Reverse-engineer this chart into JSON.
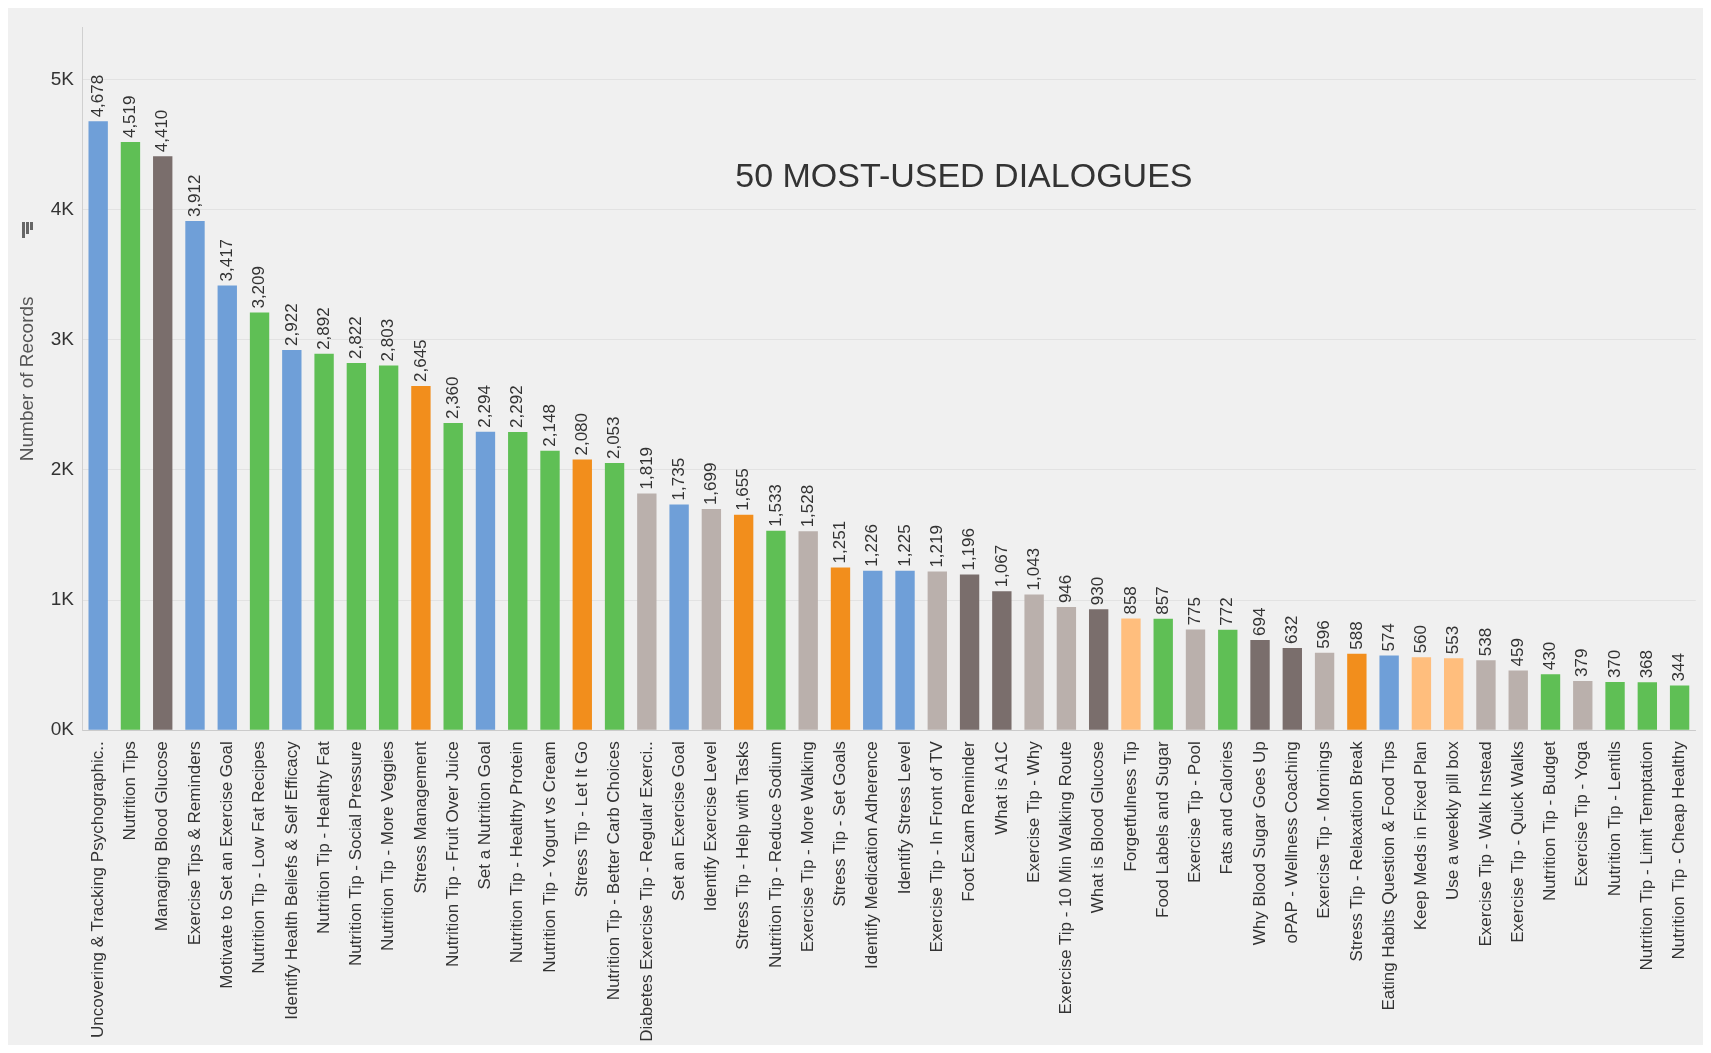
{
  "chart_data": {
    "type": "bar",
    "title": "50 MOST-USED DIALOGUES",
    "ylabel": "Number of Records",
    "categories": [
      "Uncovering & Tracking Psychographic..",
      "Nutrition Tips",
      "Managing Blood Glucose",
      "Exercise Tips & Reminders",
      "Motivate to Set an Exercise Goal",
      "Nutrition Tip - Low Fat Recipes",
      "Identify Health Beliefs & Self Efficacy",
      "Nutrition Tip - Healthy Fat",
      "Nutrition Tip - Social Pressure",
      "Nutrition Tip - More Veggies",
      "Stress Management",
      "Nutrition Tip - Fruit Over Juice",
      "Set a Nutrition Goal",
      "Nutrition Tip - Healthy Protein",
      "Nutrition Tip - Yogurt vs Cream",
      "Stress Tip - Let It Go",
      "Nutrition Tip - Better Carb Choices",
      "Diabetes Exercise Tip - Regular Exerci..",
      "Set an Exercise Goal",
      "Identify Exercise Level",
      "Stress Tip - Help with Tasks",
      "Nutrition Tip - Reduce Sodium",
      "Exercise Tip - More Walking",
      "Stress Tip - Set Goals",
      "Identify Medication Adherence",
      "Identify Stress Level",
      "Exercise Tip - In Front of TV",
      "Foot Exam Reminder",
      "What is A1C",
      "Exercise Tip - Why",
      "Exercise Tip - 10 Min Walking Route",
      "What is Blood Glucose",
      "Forgetfulness Tip",
      "Food Labels and Sugar",
      "Exercise Tip - Pool",
      "Fats and Calories",
      "Why Blood Sugar Goes Up",
      "oPAP - Wellness Coaching",
      "Exercise Tip - Mornings",
      "Stress Tip - Relaxation Break",
      "Eating Habits Question & Food Tips",
      "Keep Meds in Fixed Plan",
      "Use a weekly pill box",
      "Exercise Tip - Walk Instead",
      "Exercise Tip - Quick Walks",
      "Nutrition Tip - Budget",
      "Exercise Tip - Yoga",
      "Nutrition Tip - Lentils",
      "Nutrition Tip - Limit Temptation",
      "Nutrition Tip - Cheap Healthy"
    ],
    "values": [
      4678,
      4519,
      4410,
      3912,
      3417,
      3209,
      2922,
      2892,
      2822,
      2803,
      2645,
      2360,
      2294,
      2292,
      2148,
      2080,
      2053,
      1819,
      1735,
      1699,
      1655,
      1533,
      1528,
      1251,
      1226,
      1225,
      1219,
      1196,
      1067,
      1043,
      946,
      930,
      858,
      857,
      775,
      772,
      694,
      632,
      596,
      588,
      574,
      560,
      553,
      538,
      459,
      430,
      379,
      370,
      368,
      344
    ],
    "colors": [
      "#6f9fd8",
      "#5fbf55",
      "#7a6e6c",
      "#6f9fd8",
      "#6f9fd8",
      "#5fbf55",
      "#6f9fd8",
      "#5fbf55",
      "#5fbf55",
      "#5fbf55",
      "#f28e1c",
      "#5fbf55",
      "#6f9fd8",
      "#5fbf55",
      "#5fbf55",
      "#f28e1c",
      "#5fbf55",
      "#bab0ac",
      "#6f9fd8",
      "#bab0ac",
      "#f28e1c",
      "#5fbf55",
      "#bab0ac",
      "#f28e1c",
      "#6f9fd8",
      "#6f9fd8",
      "#bab0ac",
      "#7a6e6c",
      "#7a6e6c",
      "#bab0ac",
      "#bab0ac",
      "#7a6e6c",
      "#ffbe7d",
      "#5fbf55",
      "#bab0ac",
      "#5fbf55",
      "#7a6e6c",
      "#7a6e6c",
      "#bab0ac",
      "#f28e1c",
      "#6f9fd8",
      "#ffbe7d",
      "#ffbe7d",
      "#bab0ac",
      "#bab0ac",
      "#5fbf55",
      "#bab0ac",
      "#5fbf55",
      "#5fbf55",
      "#5fbf55"
    ],
    "ylim": [
      0,
      5400
    ],
    "yticks": [
      {
        "value": 0,
        "label": "0K"
      },
      {
        "value": 1000,
        "label": "1K"
      },
      {
        "value": 2000,
        "label": "2K"
      },
      {
        "value": 3000,
        "label": "3K"
      },
      {
        "value": 4000,
        "label": "4K"
      },
      {
        "value": 5000,
        "label": "5K"
      }
    ],
    "value_labels": [
      "4,678",
      "4,519",
      "4,410",
      "3,912",
      "3,417",
      "3,209",
      "2,922",
      "2,892",
      "2,822",
      "2,803",
      "2,645",
      "2,360",
      "2,294",
      "2,292",
      "2,148",
      "2,080",
      "2,053",
      "1,819",
      "1,735",
      "1,699",
      "1,655",
      "1,533",
      "1,528",
      "1,251",
      "1,226",
      "1,225",
      "1,219",
      "1,196",
      "1,067",
      "1,043",
      "946",
      "930",
      "858",
      "857",
      "775",
      "772",
      "694",
      "632",
      "596",
      "588",
      "574",
      "560",
      "553",
      "538",
      "459",
      "430",
      "379",
      "370",
      "368",
      "344"
    ],
    "grid": "y",
    "legend": false
  }
}
